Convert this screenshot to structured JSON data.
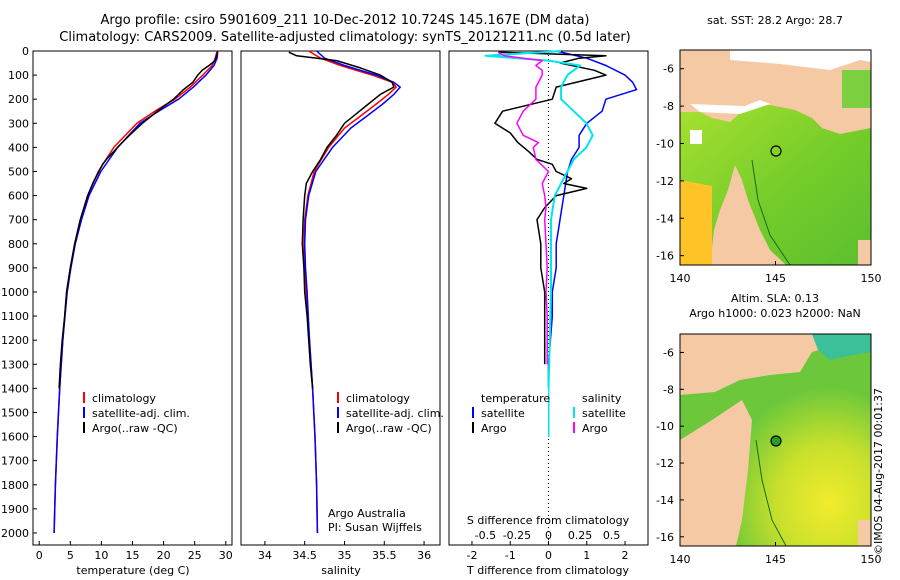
{
  "header": {
    "line1": "Argo profile: csiro 5901609_211 10-Dec-2012 10.724S 145.167E (DM data)",
    "line2": "Climatology: CARS2009. Satellite-adjusted climatology: synTS_20121211.nc (0.5d later)"
  },
  "colors": {
    "climatology": "#ff0000",
    "satellite": "#0000ff",
    "argo": "#000000",
    "sat_salinity": "#00e5ee",
    "argo_salinity": "#ff00ff",
    "land": "#f5c9a3"
  },
  "chart_data": [
    {
      "id": "temperature",
      "type": "line",
      "xlabel": "temperature (deg C)",
      "xlim": [
        -1,
        31
      ],
      "xticks": [
        0,
        5,
        10,
        15,
        20,
        25,
        30
      ],
      "ylim": [
        0,
        2050
      ],
      "yticks": [
        0,
        100,
        200,
        300,
        400,
        500,
        600,
        700,
        800,
        900,
        1000,
        1100,
        1200,
        1300,
        1400,
        1500,
        1600,
        1700,
        1800,
        1900,
        2000
      ],
      "legend": [
        "climatology",
        "satellite-adj. clim.",
        "Argo(..raw -QC)"
      ],
      "series": [
        {
          "name": "climatology",
          "depth": [
            0,
            30,
            60,
            100,
            150,
            200,
            250,
            300,
            400,
            500,
            600,
            700,
            800,
            900,
            1000,
            1200,
            1400,
            1600,
            1800,
            2000
          ],
          "values": [
            28.6,
            28.3,
            27.8,
            26.3,
            24.3,
            21.8,
            18.6,
            15.7,
            12.0,
            9.5,
            7.8,
            6.6,
            5.7,
            5.0,
            4.4,
            3.8,
            3.3,
            2.9,
            2.6,
            2.4
          ]
        },
        {
          "name": "satellite-adj. clim.",
          "depth": [
            0,
            30,
            60,
            100,
            150,
            200,
            250,
            300,
            400,
            500,
            600,
            700,
            800,
            900,
            1000,
            1200,
            1400,
            1600,
            1800,
            2000
          ],
          "values": [
            28.7,
            28.6,
            28.1,
            26.8,
            24.8,
            22.4,
            19.2,
            16.2,
            12.6,
            9.9,
            8.0,
            6.8,
            5.8,
            5.1,
            4.5,
            3.8,
            3.3,
            2.9,
            2.6,
            2.4
          ]
        },
        {
          "name": "Argo(..raw -QC)",
          "depth": [
            5,
            20,
            40,
            60,
            80,
            100,
            130,
            160,
            200,
            230,
            260,
            300,
            350,
            400,
            450,
            470,
            500,
            550,
            600,
            700,
            800,
            900,
            1000,
            1100,
            1200,
            1300,
            1400
          ],
          "values": [
            28.7,
            28.5,
            28.3,
            27.3,
            26.2,
            25.5,
            24.7,
            23.2,
            21.6,
            20.0,
            18.5,
            16.6,
            14.5,
            12.6,
            10.8,
            10.2,
            9.6,
            8.6,
            7.8,
            6.6,
            5.7,
            5.0,
            4.4,
            4.1,
            3.7,
            3.4,
            3.2
          ]
        }
      ]
    },
    {
      "id": "salinity",
      "type": "line",
      "xlabel": "salinity",
      "xlim": [
        33.7,
        36.2
      ],
      "xticks": [
        34,
        34.5,
        35,
        35.5,
        36
      ],
      "ylim": [
        0,
        2050
      ],
      "legend": [
        "climatology",
        "satellite-adj. clim.",
        "Argo(..raw -QC)"
      ],
      "annotation": [
        "Argo Australia",
        "PI: Susan Wijffels"
      ],
      "series": [
        {
          "name": "climatology",
          "depth": [
            0,
            30,
            60,
            100,
            130,
            150,
            180,
            220,
            270,
            320,
            400,
            500,
            600,
            700,
            800,
            900,
            1000,
            1200,
            1400,
            1600,
            1800,
            2000
          ],
          "values": [
            34.55,
            34.7,
            34.95,
            35.35,
            35.6,
            35.65,
            35.55,
            35.4,
            35.2,
            35.0,
            34.8,
            34.62,
            34.54,
            34.5,
            34.49,
            34.5,
            34.52,
            34.56,
            34.6,
            34.63,
            34.65,
            34.66
          ]
        },
        {
          "name": "satellite-adj. clim.",
          "depth": [
            0,
            30,
            60,
            100,
            130,
            150,
            180,
            220,
            270,
            320,
            400,
            500,
            600,
            700,
            800,
            900,
            1000,
            1200,
            1400,
            1600,
            1800,
            2000
          ],
          "values": [
            34.65,
            34.75,
            35.0,
            35.4,
            35.62,
            35.7,
            35.62,
            35.48,
            35.28,
            35.08,
            34.85,
            34.64,
            34.55,
            34.51,
            34.5,
            34.51,
            34.53,
            34.56,
            34.6,
            34.63,
            34.65,
            34.66
          ]
        },
        {
          "name": "Argo(..raw -QC)",
          "depth": [
            5,
            20,
            40,
            70,
            100,
            130,
            150,
            180,
            220,
            260,
            300,
            350,
            400,
            450,
            500,
            550,
            600,
            700,
            800,
            900,
            1000,
            1100,
            1200,
            1300,
            1400
          ],
          "values": [
            34.3,
            34.4,
            34.9,
            35.2,
            35.45,
            35.6,
            35.62,
            35.45,
            35.3,
            35.15,
            35.0,
            34.9,
            34.78,
            34.7,
            34.6,
            34.52,
            34.5,
            34.48,
            34.47,
            34.49,
            34.5,
            34.53,
            34.55,
            34.57,
            34.6
          ]
        }
      ]
    },
    {
      "id": "differences",
      "type": "line",
      "xlabel": "T difference from climatology",
      "xlabel_top": "S difference from climatology",
      "xlim": [
        -2.6,
        2.6
      ],
      "xticks": [
        -2,
        -1,
        0,
        1,
        2
      ],
      "sticks": [
        -0.5,
        -0.25,
        0,
        0.25,
        0.5
      ],
      "ylim": [
        0,
        2050
      ],
      "legend_headers": [
        "temperature",
        "salinity"
      ],
      "legend": [
        "satellite",
        "Argo",
        "satellite",
        "Argo"
      ],
      "series": [
        {
          "name": "temperature satellite",
          "depth": [
            0,
            30,
            60,
            100,
            130,
            160,
            200,
            250,
            300,
            350,
            400,
            450,
            500,
            600,
            700,
            800,
            900,
            1000,
            1100,
            1200,
            1300,
            1400,
            1500,
            1600
          ],
          "values": [
            0.2,
            1.0,
            1.5,
            2.0,
            2.2,
            2.3,
            1.5,
            1.4,
            1.0,
            0.8,
            0.8,
            0.6,
            0.5,
            0.4,
            0.3,
            0.2,
            0.2,
            0.1,
            0.1,
            0.05,
            0.0,
            0.0,
            0.0,
            0.0
          ]
        },
        {
          "name": "temperature Argo",
          "depth": [
            5,
            20,
            30,
            50,
            80,
            100,
            150,
            200,
            250,
            300,
            340,
            380,
            420,
            450,
            470,
            500,
            530,
            550,
            570,
            600,
            650,
            700,
            800,
            900,
            1000,
            1100,
            1200,
            1300
          ],
          "values": [
            -1.3,
            1.5,
            0.8,
            0.3,
            1.2,
            1.5,
            0.2,
            0.1,
            -1.2,
            -1.4,
            -1.0,
            -0.8,
            -0.5,
            -0.3,
            0.1,
            0.2,
            0.6,
            0.4,
            1.0,
            0.2,
            -0.1,
            -0.3,
            -0.2,
            -0.2,
            -0.1,
            -0.1,
            -0.1,
            -0.1
          ]
        },
        {
          "name": "salinity satellite",
          "depth": [
            0,
            20,
            40,
            60,
            80,
            100,
            150,
            200,
            250,
            300,
            350,
            400,
            450,
            500,
            550,
            600,
            700,
            800,
            900,
            1000,
            1200,
            1400,
            1600
          ],
          "values": [
            0.1,
            -0.5,
            0.0,
            0.25,
            0.2,
            0.15,
            0.1,
            0.1,
            0.2,
            0.3,
            0.35,
            0.3,
            0.2,
            0.15,
            0.1,
            0.05,
            0.02,
            0.02,
            0.02,
            0.02,
            0.01,
            0.0,
            0.0
          ]
        },
        {
          "name": "salinity Argo",
          "depth": [
            5,
            20,
            40,
            60,
            80,
            100,
            150,
            200,
            250,
            300,
            350,
            380,
            400,
            450,
            500,
            550,
            600,
            650,
            700,
            800,
            900,
            1000,
            1100,
            1200,
            1300
          ],
          "values": [
            -0.4,
            -0.35,
            -0.05,
            -0.1,
            -0.05,
            -0.05,
            -0.1,
            -0.1,
            -0.2,
            -0.25,
            -0.2,
            -0.08,
            -0.12,
            -0.1,
            0.0,
            -0.05,
            -0.03,
            -0.02,
            -0.03,
            -0.02,
            -0.01,
            -0.02,
            -0.01,
            -0.01,
            -0.01
          ]
        }
      ]
    }
  ],
  "maps": {
    "sst": {
      "title": "sat. SST: 28.2  Argo: 28.7",
      "xticks": [
        140,
        145,
        150
      ],
      "yticks": [
        -6,
        -8,
        -10,
        -12,
        -14,
        -16
      ],
      "argo_lon": 145.167,
      "argo_lat": -10.724
    },
    "sla": {
      "title1": "Altim. SLA: 0.13",
      "title2": "Argo h1000: 0.023 h2000: NaN",
      "xticks": [
        140,
        145,
        150
      ],
      "yticks": [
        -6,
        -8,
        -10,
        -12,
        -14,
        -16
      ],
      "argo_lon": 145.167,
      "argo_lat": -10.724
    }
  },
  "footer": {
    "stamp": "©IMOS 04-Aug-2017 00:01:37"
  }
}
